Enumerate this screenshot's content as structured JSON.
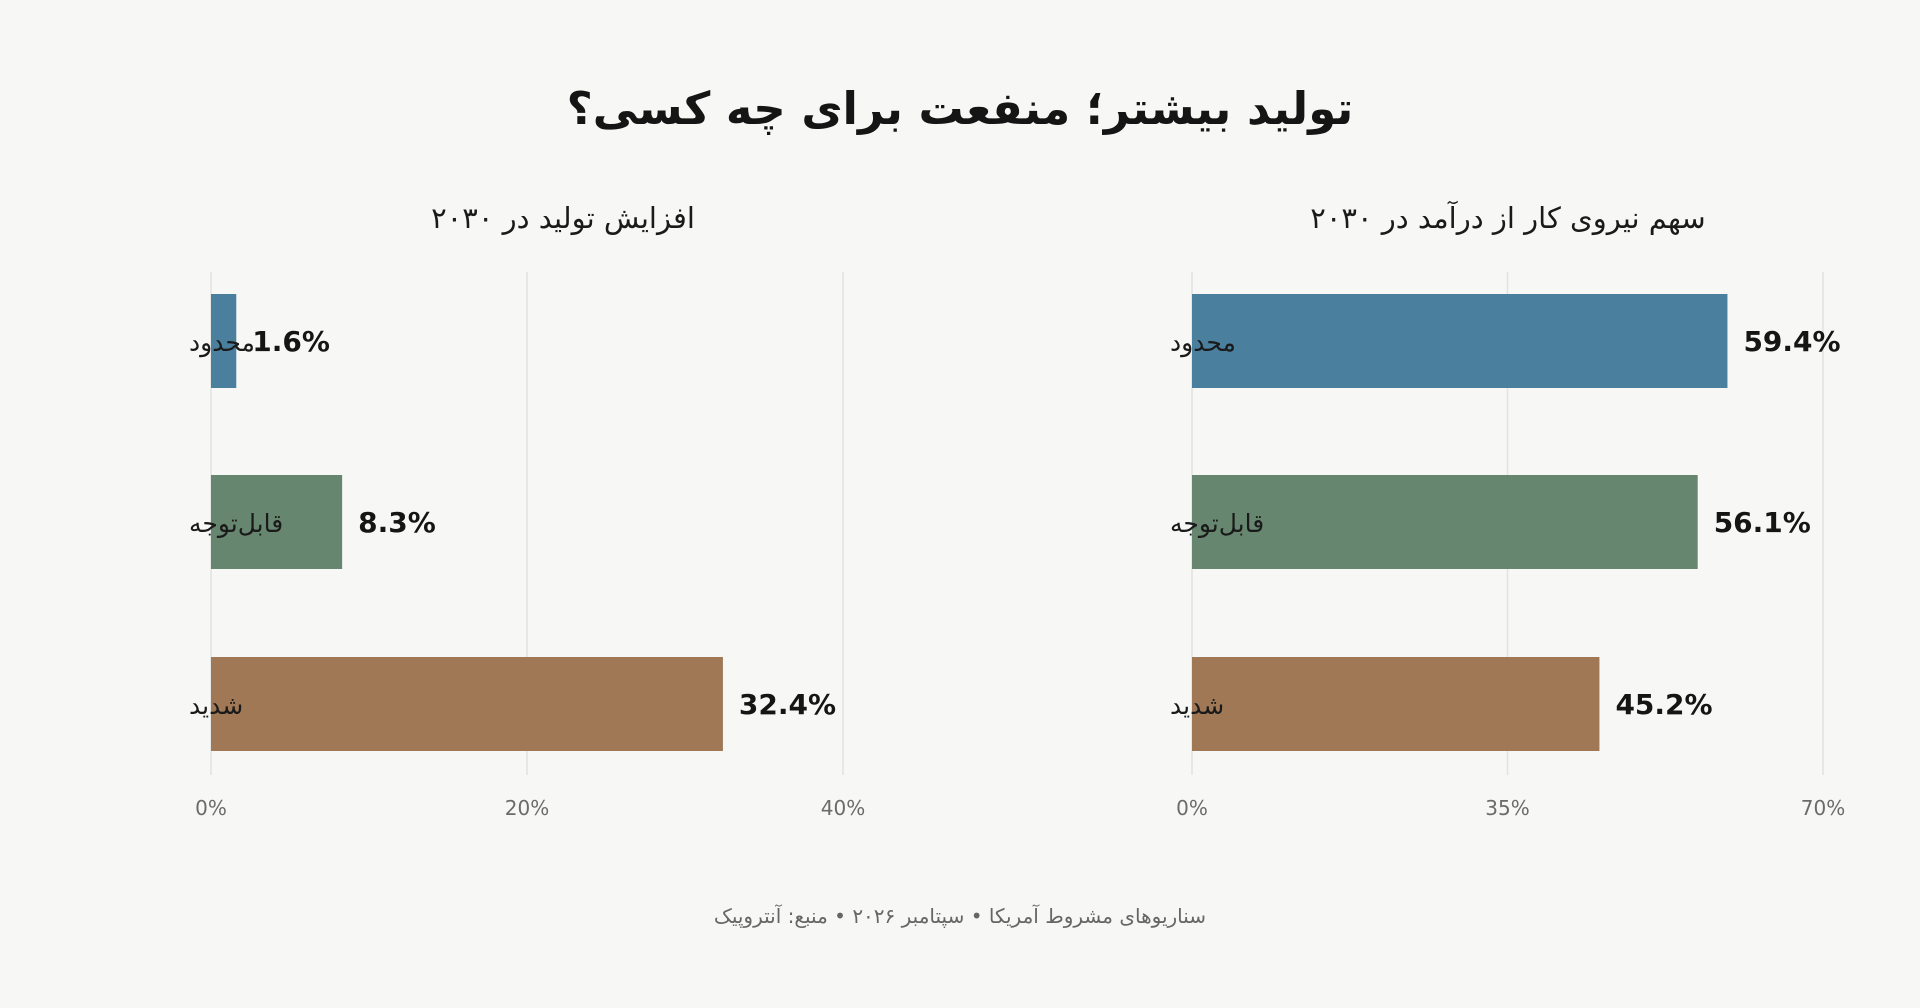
{
  "header": {
    "title": "تولید بیشتر؛ منفعت برای چه کسی؟"
  },
  "footer": {
    "text": "سناریوهای مشروط آمریکا • سپتامبر ۲۰۲۶ • منبع: آنتروپیک"
  },
  "chart_data": [
    {
      "type": "bar",
      "orientation": "horizontal",
      "title": "افزایش تولید در ۲۰۳۰",
      "categories": [
        "محدود",
        "قابل‌توجه",
        "شدید"
      ],
      "values": [
        1.6,
        8.3,
        32.4
      ],
      "value_labels": [
        "1.6%",
        "8.3%",
        "32.4%"
      ],
      "colors": [
        "#4a7f9e",
        "#67866f",
        "#a07856"
      ],
      "xlim": [
        0,
        40
      ],
      "ticks": [
        0,
        20,
        40
      ],
      "tick_labels": [
        "0%",
        "20%",
        "40%"
      ],
      "grid": true
    },
    {
      "type": "bar",
      "orientation": "horizontal",
      "title": "سهم نیروی کار از درآمد در ۲۰۳۰",
      "categories": [
        "محدود",
        "قابل‌توجه",
        "شدید"
      ],
      "values": [
        59.4,
        56.1,
        45.2
      ],
      "value_labels": [
        "59.4%",
        "56.1%",
        "45.2%"
      ],
      "colors": [
        "#4a7f9e",
        "#67866f",
        "#a07856"
      ],
      "xlim": [
        0,
        70
      ],
      "ticks": [
        0,
        35,
        70
      ],
      "tick_labels": [
        "0%",
        "35%",
        "70%"
      ],
      "grid": true
    }
  ]
}
